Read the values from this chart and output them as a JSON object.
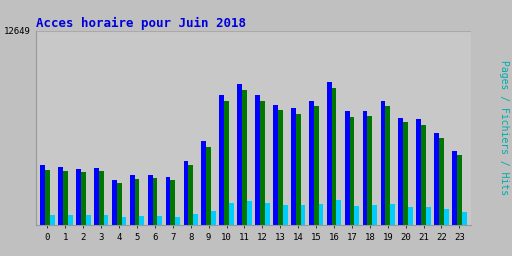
{
  "title": "Acces horaire pour Juin 2018",
  "title_color": "#0000dd",
  "title_fontsize": 9,
  "ylabel": "Pages / Fichiers / Hits",
  "ylabel_color": "#00aaaa",
  "ylabel_fontsize": 7,
  "background_color": "#c0c0c0",
  "plot_bg_color": "#c8c8c8",
  "grid_color": "#aaaaaa",
  "hours": [
    0,
    1,
    2,
    3,
    4,
    5,
    6,
    7,
    8,
    9,
    10,
    11,
    12,
    13,
    14,
    15,
    16,
    17,
    18,
    19,
    20,
    21,
    22,
    23
  ],
  "hits": [
    3900,
    3800,
    3650,
    3750,
    2950,
    3250,
    3300,
    3150,
    4200,
    5500,
    8500,
    9200,
    8500,
    7800,
    7600,
    8100,
    9300,
    7400,
    7400,
    8100,
    7000,
    6900,
    6000,
    4800
  ],
  "fichiers": [
    3600,
    3550,
    3450,
    3550,
    2750,
    3000,
    3050,
    2950,
    3950,
    5100,
    8100,
    8800,
    8100,
    7500,
    7250,
    7750,
    8900,
    7050,
    7100,
    7750,
    6700,
    6550,
    5700,
    4550
  ],
  "pages": [
    700,
    680,
    650,
    660,
    520,
    580,
    590,
    560,
    730,
    930,
    1450,
    1580,
    1450,
    1340,
    1300,
    1400,
    1630,
    1280,
    1290,
    1390,
    1220,
    1200,
    1060,
    840
  ],
  "bar_width": 0.27,
  "color_hits": "#0000ff",
  "color_fichiers": "#007700",
  "color_pages": "#00ccff",
  "max_value": 12649,
  "figsize": [
    5.12,
    2.56
  ],
  "dpi": 100
}
